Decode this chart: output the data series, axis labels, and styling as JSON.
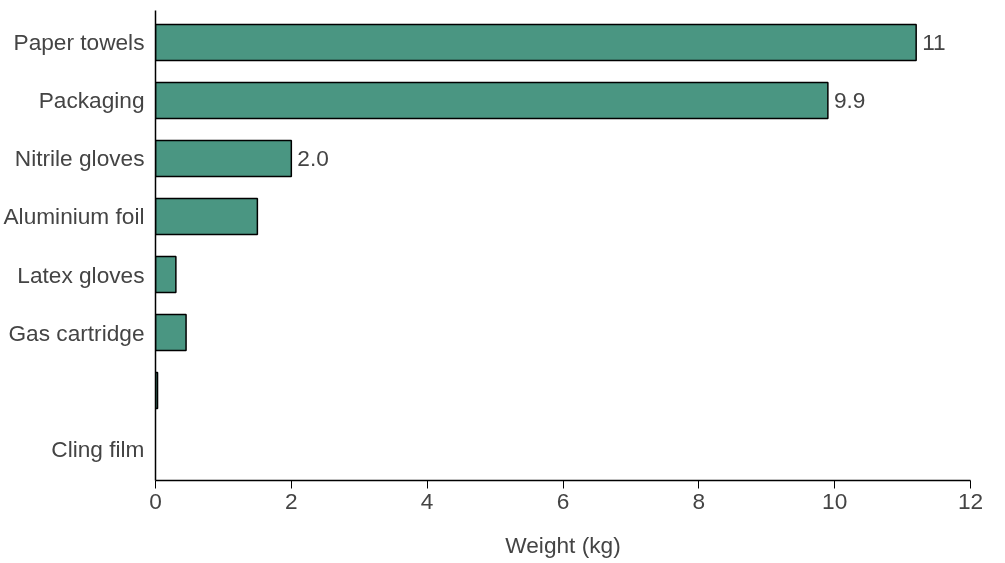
{
  "chart_data": {
    "type": "bar",
    "orientation": "horizontal",
    "xlabel": "Weight (kg)",
    "categories": [
      "Paper towels",
      "Packaging",
      "Nitrile gloves",
      "Aluminium foil",
      "Latex gloves",
      "Gas cartridge",
      null,
      "Cling film"
    ],
    "values": [
      11.2,
      9.9,
      2.0,
      1.5,
      0.3,
      0.45,
      0.03,
      null
    ],
    "value_labels": [
      "11",
      "9.9",
      "2.0",
      null,
      null,
      null,
      null,
      null
    ],
    "color": "#4a9682",
    "xlim": [
      0,
      12
    ],
    "xticks": [
      0,
      2,
      4,
      6,
      8,
      10,
      12
    ],
    "grid": false
  }
}
